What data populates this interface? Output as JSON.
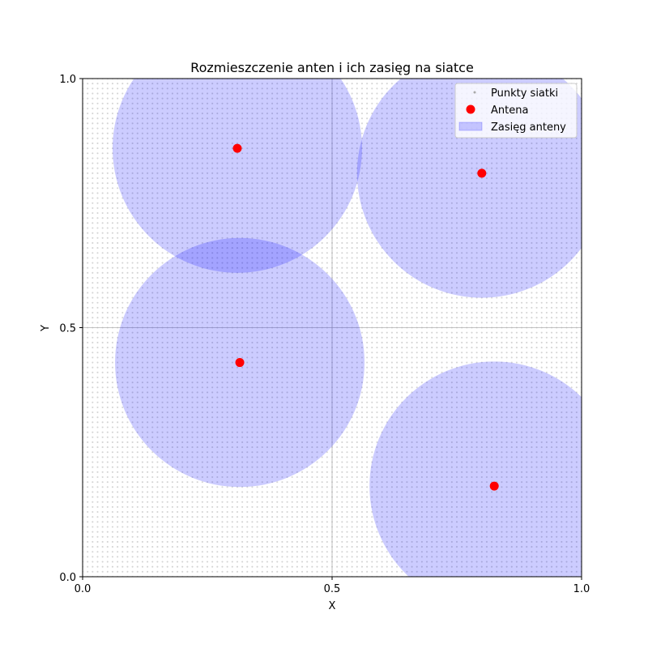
{
  "chart_data": {
    "type": "scatter",
    "title": "Rozmieszczenie anten i ich zasięg na siatce",
    "xlabel": "X",
    "ylabel": "Y",
    "xlim": [
      0.0,
      1.0
    ],
    "ylim": [
      0.0,
      1.0
    ],
    "xticks": [
      0.0,
      0.5,
      1.0
    ],
    "yticks": [
      0.0,
      0.5,
      1.0
    ],
    "xtick_labels": [
      "0.0",
      "0.5",
      "1.0"
    ],
    "ytick_labels": [
      "0.0",
      "0.5",
      "1.0"
    ],
    "grid": true,
    "legend_position": "top-right",
    "grid_points": {
      "name": "Punkty siatki",
      "min": 0.0,
      "max": 1.0,
      "step": 0.01,
      "color": "#a9a9a9"
    },
    "series": [
      {
        "name": "Antena",
        "type": "scatter",
        "color": "#ff0000",
        "points": [
          {
            "x": 0.31,
            "y": 0.86
          },
          {
            "x": 0.8,
            "y": 0.81
          },
          {
            "x": 0.315,
            "y": 0.43
          },
          {
            "x": 0.825,
            "y": 0.182
          }
        ]
      },
      {
        "name": "Zasięg anteny",
        "type": "circle",
        "color": "#0000ff",
        "radius": 0.25
      }
    ]
  }
}
